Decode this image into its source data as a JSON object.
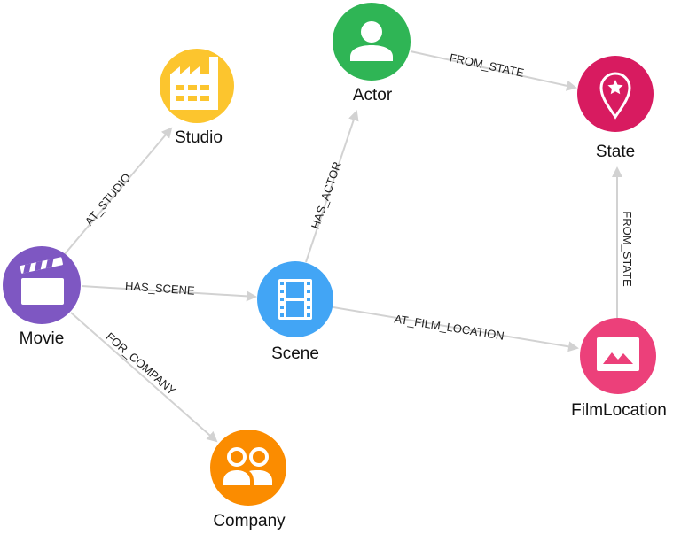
{
  "nodes": {
    "studio": {
      "label": "Studio",
      "color": "#fcc52e",
      "icon": "factory-icon"
    },
    "actor": {
      "label": "Actor",
      "color": "#2fb555",
      "icon": "person-icon"
    },
    "state": {
      "label": "State",
      "color": "#d81b60",
      "icon": "map-pin-star-icon"
    },
    "movie": {
      "label": "Movie",
      "color": "#7e57c2",
      "icon": "clapperboard-icon"
    },
    "scene": {
      "label": "Scene",
      "color": "#42a5f5",
      "icon": "film-strip-icon"
    },
    "filmlocation": {
      "label": "FilmLocation",
      "color": "#ec407a",
      "icon": "image-icon"
    },
    "company": {
      "label": "Company",
      "color": "#fb8c00",
      "icon": "group-icon"
    }
  },
  "edges": {
    "at_studio": "AT_STUDIO",
    "has_scene": "HAS_SCENE",
    "for_company": "FOR_COMPANY",
    "has_actor": "HAS_ACTOR",
    "at_film_location": "AT_FILM_LOCATION",
    "actor_from_state": "FROM_STATE",
    "location_from_state": "FROM_STATE"
  }
}
